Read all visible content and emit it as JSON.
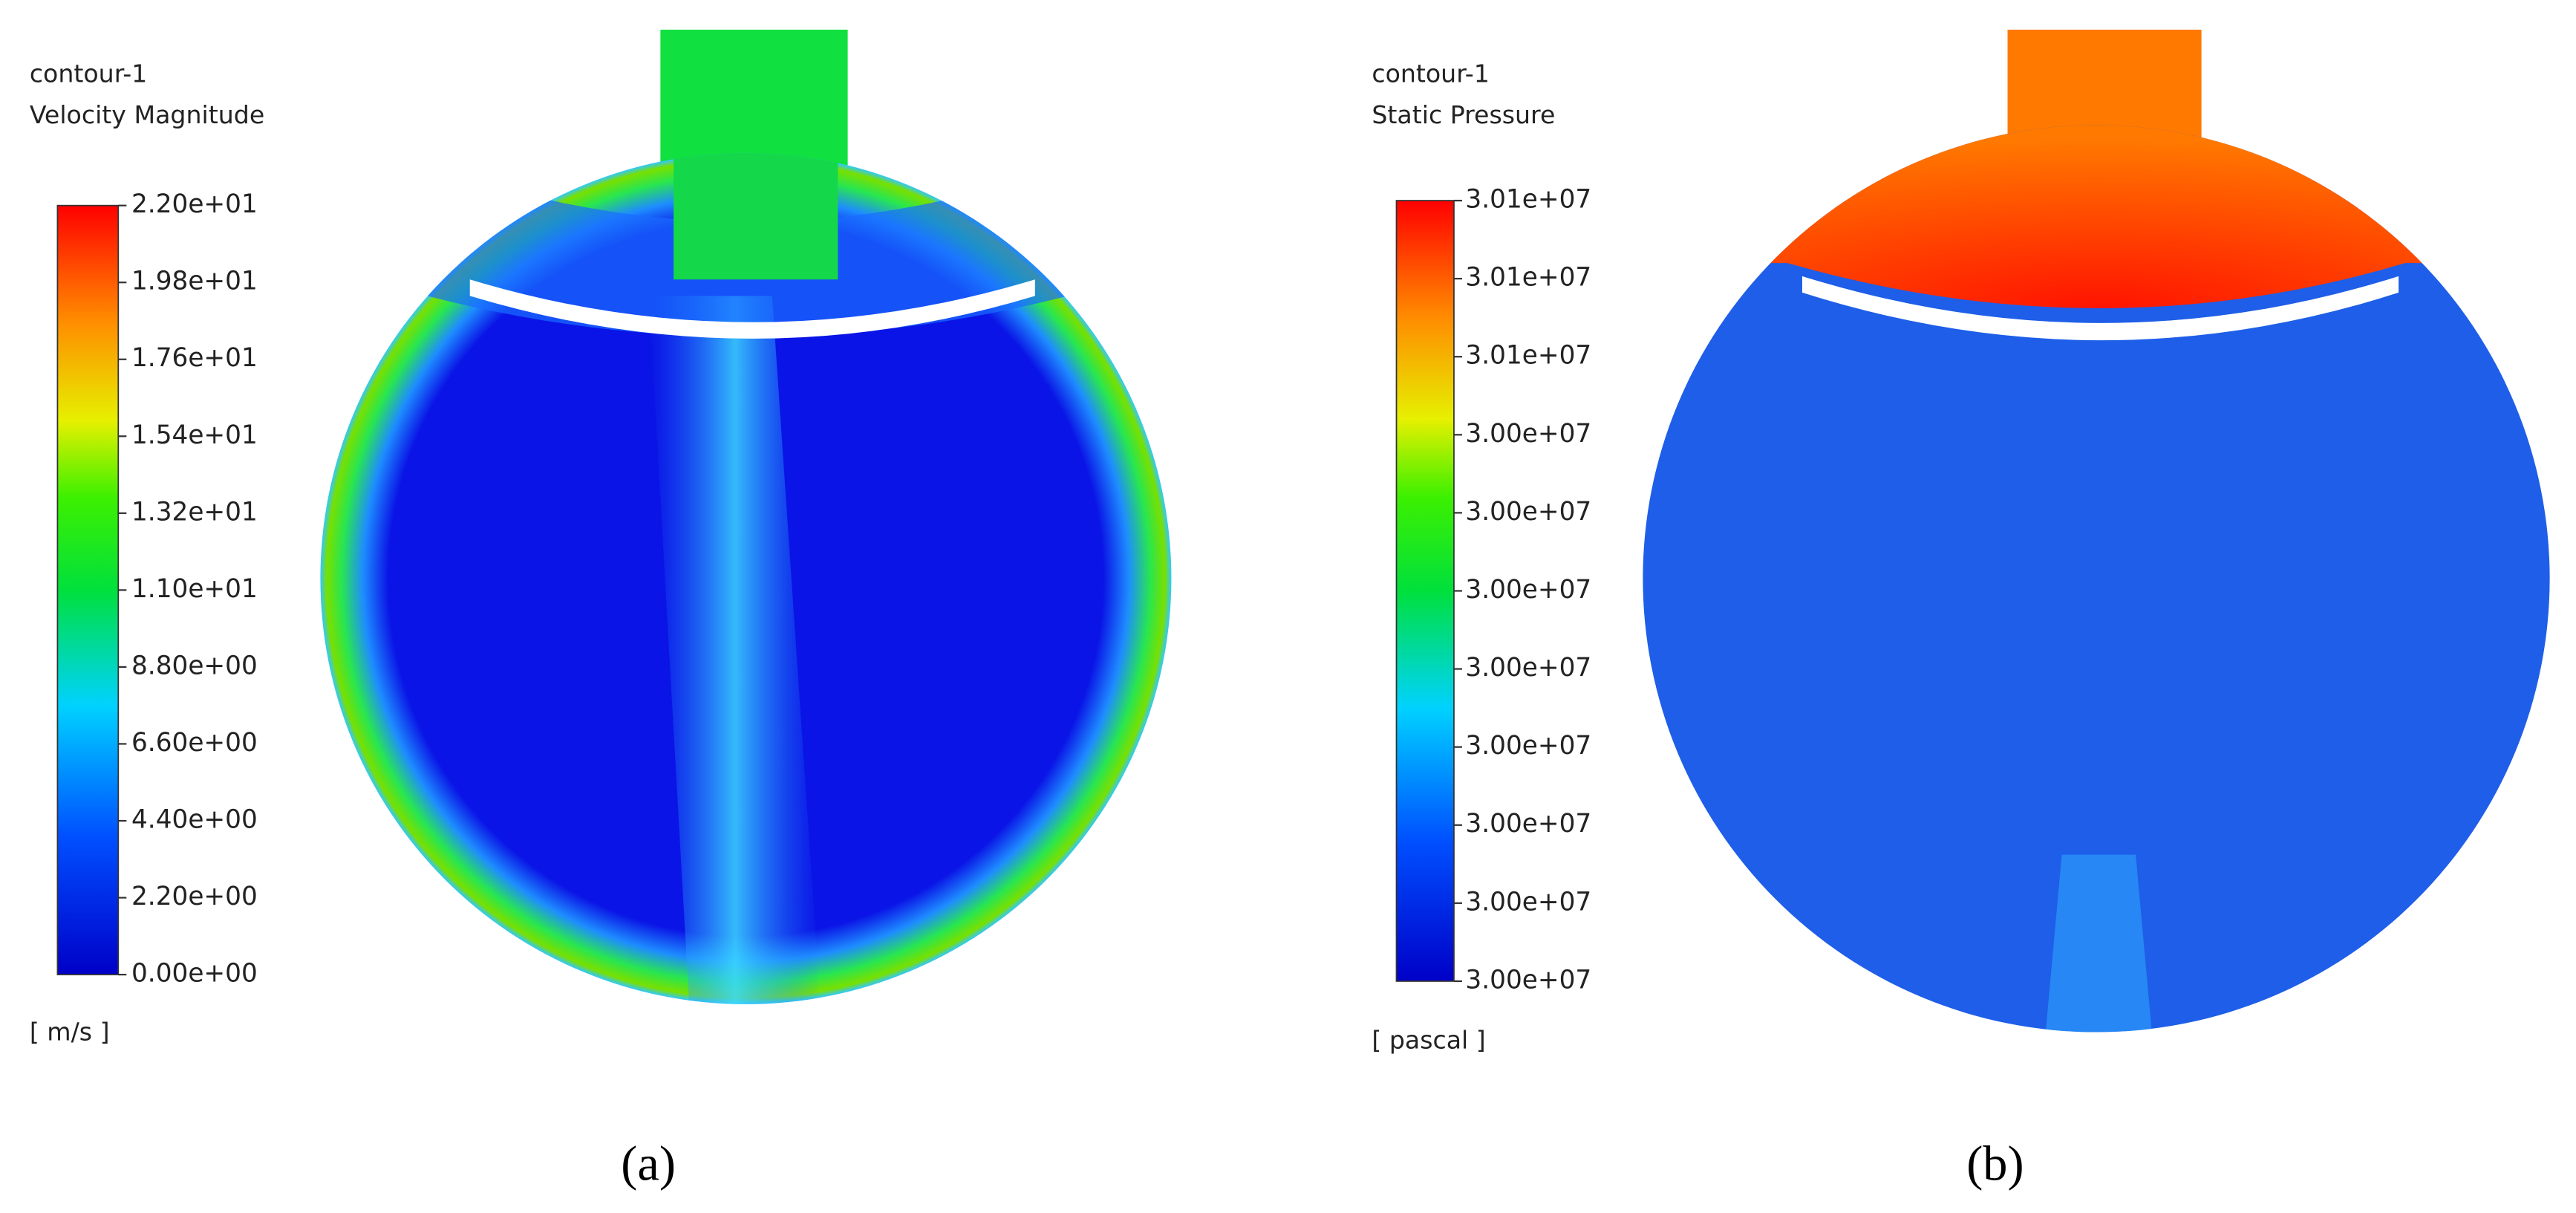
{
  "panels": [
    {
      "title": "contour-1",
      "quantity": "Velocity Magnitude",
      "ticks": [
        "2.20e+01",
        "1.98e+01",
        "1.76e+01",
        "1.54e+01",
        "1.32e+01",
        "1.10e+01",
        "8.80e+00",
        "6.60e+00",
        "4.40e+00",
        "2.20e+00",
        "0.00e+00"
      ],
      "unit": "[ m/s ]",
      "caption": "(a)"
    },
    {
      "title": "contour-1",
      "quantity": "Static Pressure",
      "ticks": [
        "3.01e+07",
        "3.01e+07",
        "3.01e+07",
        "3.00e+07",
        "3.00e+07",
        "3.00e+07",
        "3.00e+07",
        "3.00e+07",
        "3.00e+07",
        "3.00e+07",
        "3.00e+07"
      ],
      "unit": "[ pascal ]",
      "caption": "(b)"
    }
  ]
}
